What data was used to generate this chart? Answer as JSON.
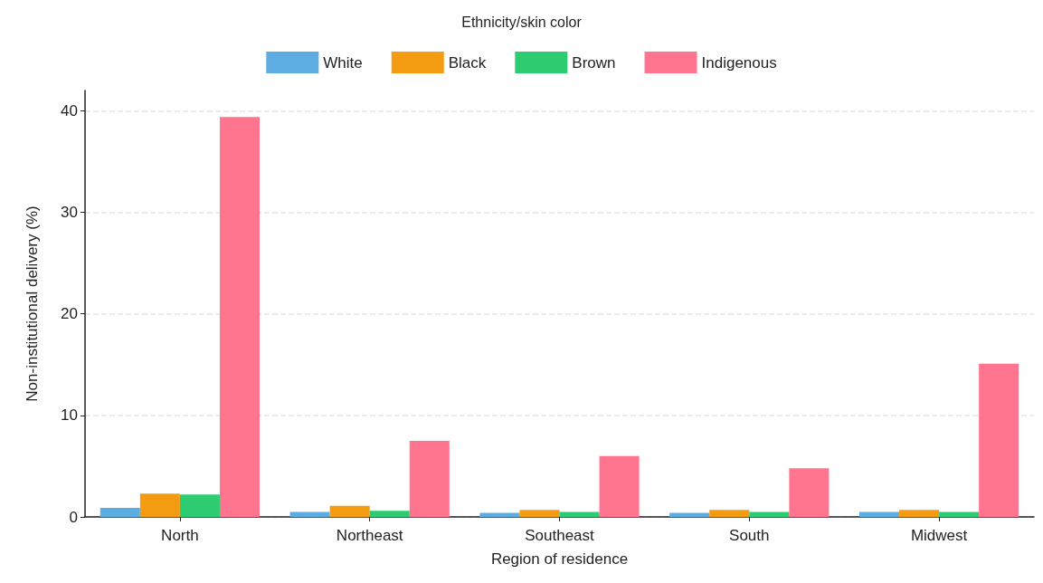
{
  "chart_data": {
    "type": "bar",
    "legend_title": "Ethnicity/skin color",
    "xlabel": "Region of residence",
    "ylabel": "Non-institutional delivery (%)",
    "categories": [
      "North",
      "Northeast",
      "Southeast",
      "South",
      "Midwest"
    ],
    "series": [
      {
        "name": "White",
        "color": "#5dade2",
        "values": [
          0.9,
          0.5,
          0.4,
          0.4,
          0.5
        ]
      },
      {
        "name": "Black",
        "color": "#f39c12",
        "values": [
          2.3,
          1.1,
          0.7,
          0.7,
          0.7
        ]
      },
      {
        "name": "Brown",
        "color": "#2ecc71",
        "values": [
          2.2,
          0.6,
          0.5,
          0.5,
          0.5
        ]
      },
      {
        "name": "Indigenous",
        "color": "#ff7590",
        "values": [
          39.4,
          7.5,
          6.0,
          4.8,
          15.1
        ]
      }
    ],
    "ylim": [
      0,
      42
    ],
    "yticks": [
      0,
      10,
      20,
      30,
      40
    ],
    "grid": "y",
    "legend": "top"
  }
}
